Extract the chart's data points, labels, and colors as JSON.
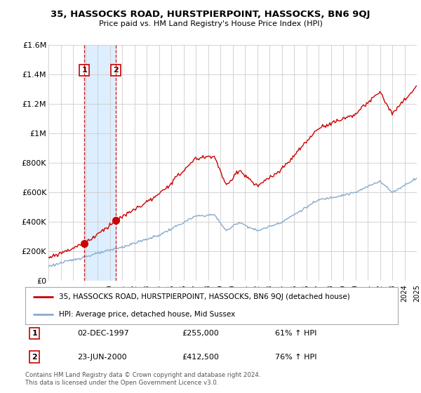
{
  "title": "35, HASSOCKS ROAD, HURSTPIERPOINT, HASSOCKS, BN6 9QJ",
  "subtitle": "Price paid vs. HM Land Registry's House Price Index (HPI)",
  "legend_red": "35, HASSOCKS ROAD, HURSTPIERPOINT, HASSOCKS, BN6 9QJ (detached house)",
  "legend_blue": "HPI: Average price, detached house, Mid Sussex",
  "sale1_label": "1",
  "sale1_date": "02-DEC-1997",
  "sale1_price": "£255,000",
  "sale1_hpi": "61% ↑ HPI",
  "sale1_year": 1997.92,
  "sale1_value": 255000,
  "sale2_label": "2",
  "sale2_date": "23-JUN-2000",
  "sale2_price": "£412,500",
  "sale2_hpi": "76% ↑ HPI",
  "sale2_year": 2000.47,
  "sale2_value": 412500,
  "footer": "Contains HM Land Registry data © Crown copyright and database right 2024.\nThis data is licensed under the Open Government Licence v3.0.",
  "ylim_min": 0,
  "ylim_max": 1600000,
  "yticks": [
    0,
    200000,
    400000,
    600000,
    800000,
    1000000,
    1200000,
    1400000,
    1600000
  ],
  "ytick_labels": [
    "£0",
    "£200K",
    "£400K",
    "£600K",
    "£800K",
    "£1M",
    "£1.2M",
    "£1.4M",
    "£1.6M"
  ],
  "red_color": "#cc0000",
  "blue_color": "#88aacc",
  "shade_color": "#ddeeff",
  "dashed_color": "#cc0000",
  "bg_color": "#ffffff",
  "grid_color": "#cccccc"
}
